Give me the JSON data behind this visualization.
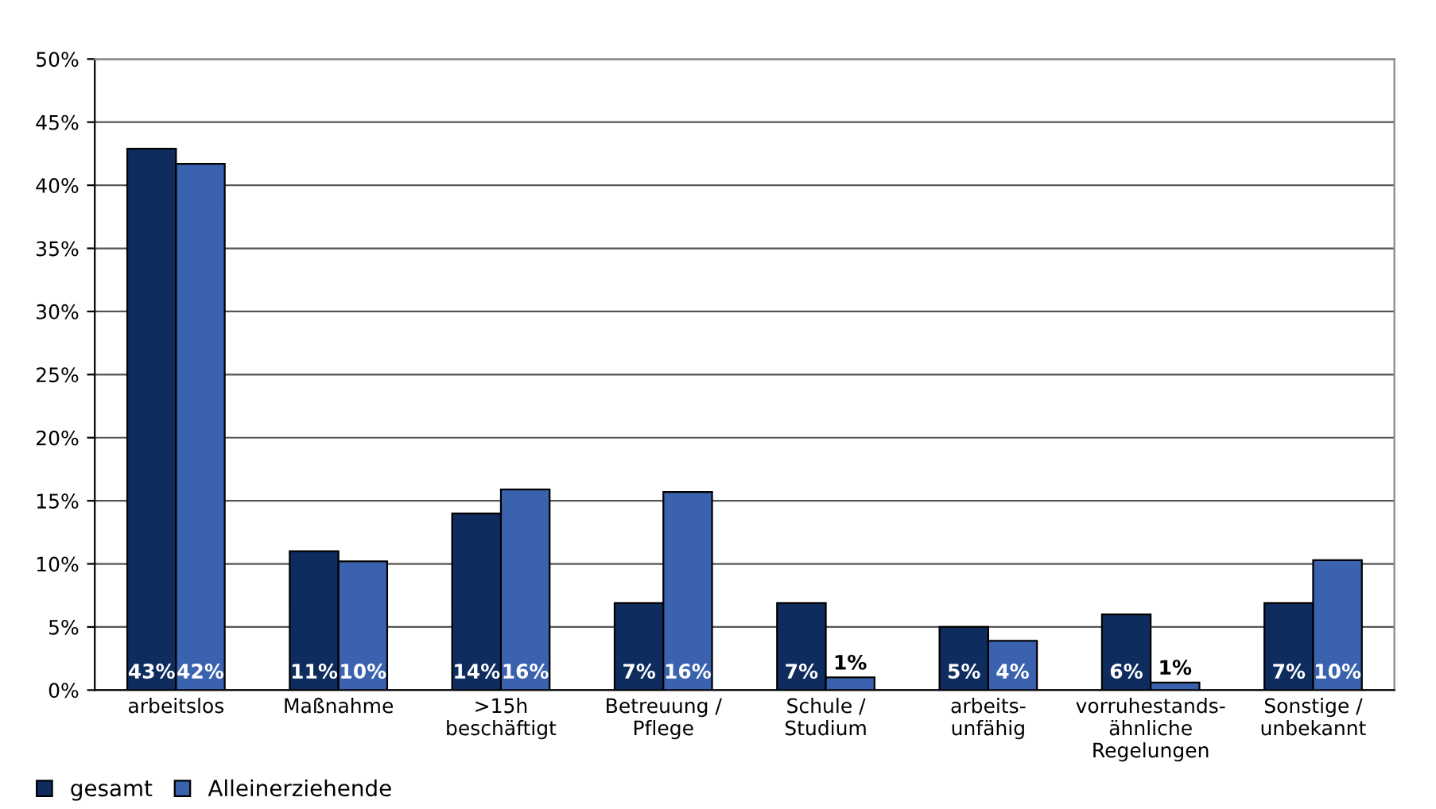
{
  "chart_data": {
    "type": "bar",
    "categories": [
      "arbeitslos",
      "Maßnahme",
      ">15h\nbeschäftigt",
      "Betreuung /\nPflege",
      "Schule /\nStudium",
      "arbeits-\nunfähig",
      "vorruhestands-\nähnliche\nRegelungen",
      "Sonstige /\nunbekannt"
    ],
    "series": [
      {
        "name": "gesamt",
        "color": "#0e2d5e",
        "values": [
          42.9,
          11,
          14,
          6.9,
          6.9,
          5,
          6,
          6.9
        ],
        "value_labels": [
          "43%",
          "11%",
          "14%",
          "7%",
          "7%",
          "5%",
          "6%",
          "7%"
        ]
      },
      {
        "name": "Alleinerziehende",
        "color": "#3a62ae",
        "values": [
          41.7,
          10.2,
          15.9,
          15.7,
          1,
          3.9,
          0.6,
          10.3
        ],
        "value_labels": [
          "42%",
          "10%",
          "16%",
          "16%",
          "1%",
          "4%",
          "1%",
          "10%"
        ]
      }
    ],
    "ylim": [
      0,
      50
    ],
    "yticks": [
      {
        "value": 0,
        "label": "0%"
      },
      {
        "value": 5,
        "label": "5%"
      },
      {
        "value": 10,
        "label": "10%"
      },
      {
        "value": 15,
        "label": "15%"
      },
      {
        "value": 20,
        "label": "20%"
      },
      {
        "value": 25,
        "label": "25%"
      },
      {
        "value": 30,
        "label": "30%"
      },
      {
        "value": 35,
        "label": "35%"
      },
      {
        "value": 40,
        "label": "40%"
      },
      {
        "value": 45,
        "label": "45%"
      },
      {
        "value": 50,
        "label": "50%"
      }
    ],
    "grid": "y",
    "legend": "bottom left"
  }
}
